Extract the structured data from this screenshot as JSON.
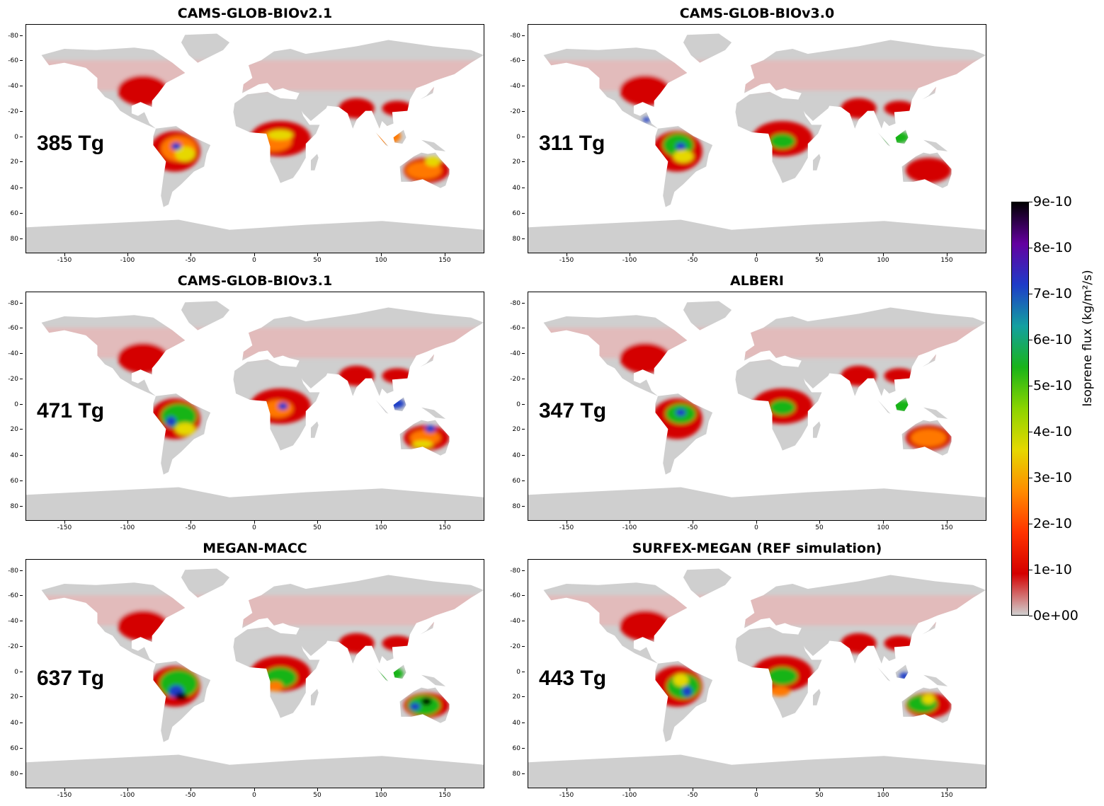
{
  "panels": [
    {
      "title": "CAMS-GLOB-BIOv2.1",
      "total": "385 Tg"
    },
    {
      "title": "CAMS-GLOB-BIOv3.0",
      "total": "311 Tg"
    },
    {
      "title": "CAMS-GLOB-BIOv3.1",
      "total": "471 Tg"
    },
    {
      "title": "ALBERI",
      "total": "347 Tg"
    },
    {
      "title": "MEGAN-MACC",
      "total": "637 Tg"
    },
    {
      "title": "SURFEX-MEGAN (REF simulation)",
      "total": "443 Tg"
    }
  ],
  "axes": {
    "y_ticks": [
      "-80",
      "-60",
      "-40",
      "-20",
      "0",
      "20",
      "40",
      "60",
      "80"
    ],
    "x_ticks": [
      "-150",
      "-100",
      "-50",
      "0",
      "50",
      "100",
      "150"
    ]
  },
  "colorbar": {
    "label": "Isoprene flux (kg/m²/s)",
    "ticks": [
      "9e-10",
      "8e-10",
      "7e-10",
      "6e-10",
      "5e-10",
      "4e-10",
      "3e-10",
      "2e-10",
      "1e-10",
      "0e+00"
    ],
    "colors": [
      "#d0d0d0",
      "#d40000",
      "#ff3300",
      "#ff8c00",
      "#e6d800",
      "#8cd400",
      "#19b419",
      "#14a0a0",
      "#1e3cc8",
      "#6400a0",
      "#000000"
    ]
  },
  "map_colors": {
    "land": "#cfcfcf",
    "low": "#e8b4b4",
    "red": "#d40000",
    "orange": "#ff7800",
    "yellow": "#e6d800",
    "green": "#19b419",
    "blue": "#1e3cc8"
  }
}
